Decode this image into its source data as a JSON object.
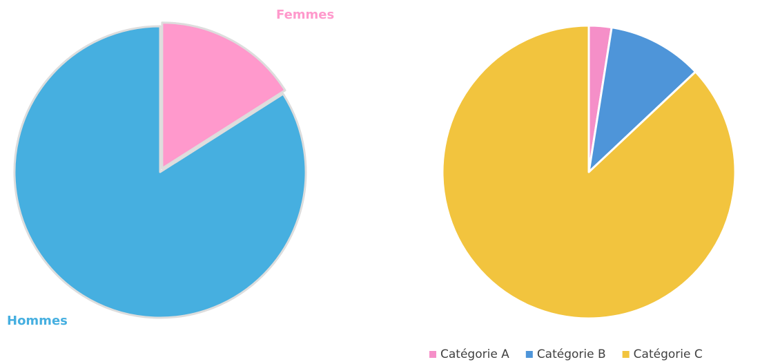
{
  "chart_data": [
    {
      "type": "pie",
      "categories": [
        "Femmes",
        "Hommes"
      ],
      "values": [
        16,
        84
      ],
      "colors": [
        "#ff99cc",
        "#46afe0"
      ],
      "labels": "outside"
    },
    {
      "type": "pie",
      "categories": [
        "Catégorie A",
        "Catégorie B",
        "Catégorie C"
      ],
      "values": [
        2.5,
        10.5,
        87
      ],
      "colors": [
        "#f58fc8",
        "#4e95d9",
        "#f2c43e"
      ],
      "legend": "bottom-right"
    }
  ]
}
